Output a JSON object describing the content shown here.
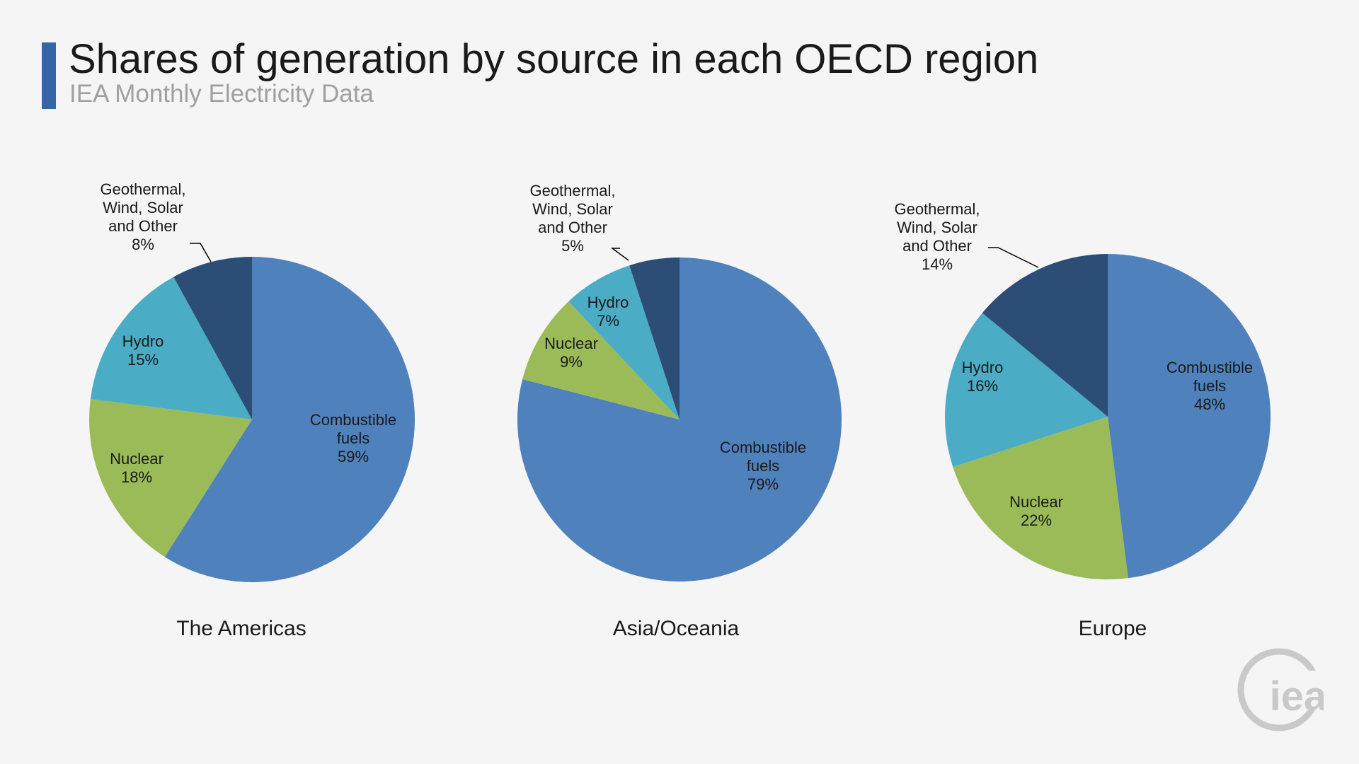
{
  "header": {
    "title": "Shares of generation by source in each OECD region",
    "subtitle": "IEA Monthly Electricity Data"
  },
  "logo": {
    "text": "iea",
    "color": "#c9c9c9"
  },
  "colors": {
    "Combustible fuels": "#4f81bd",
    "Nuclear": "#9bbb59",
    "Hydro": "#4bacc6",
    "Geothermal, Wind, Solar and Other": "#2c4d75"
  },
  "chart_data": [
    {
      "type": "pie",
      "title": "The Americas",
      "slices": [
        {
          "label": "Combustible fuels",
          "value": 59
        },
        {
          "label": "Nuclear",
          "value": 18
        },
        {
          "label": "Hydro",
          "value": 15
        },
        {
          "label": "Geothermal, Wind, Solar and Other",
          "value": 8
        }
      ]
    },
    {
      "type": "pie",
      "title": "Asia/Oceania",
      "slices": [
        {
          "label": "Combustible fuels",
          "value": 79
        },
        {
          "label": "Nuclear",
          "value": 9
        },
        {
          "label": "Hydro",
          "value": 7
        },
        {
          "label": "Geothermal, Wind, Solar and Other",
          "value": 5
        }
      ]
    },
    {
      "type": "pie",
      "title": "Europe",
      "slices": [
        {
          "label": "Combustible fuels",
          "value": 48
        },
        {
          "label": "Nuclear",
          "value": 22
        },
        {
          "label": "Hydro",
          "value": 16
        },
        {
          "label": "Geothermal, Wind, Solar and Other",
          "value": 14
        }
      ]
    }
  ]
}
